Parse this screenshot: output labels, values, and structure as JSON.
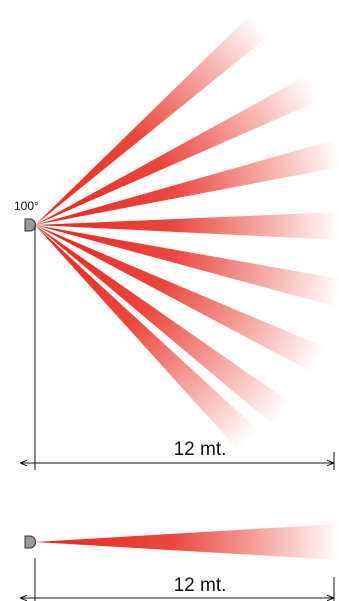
{
  "colors": {
    "beam": "#e8261c",
    "beam_fade": "#ffffff",
    "sensor": "#9a9a9a",
    "sensor_outline": "#333333",
    "line": "#111111"
  },
  "top_diagram": {
    "angle_label": "100°",
    "distance_label": "12 mt.",
    "beam_count": 8
  },
  "bottom_diagram": {
    "distance_label": "12 mt.",
    "beam_count": 1
  }
}
